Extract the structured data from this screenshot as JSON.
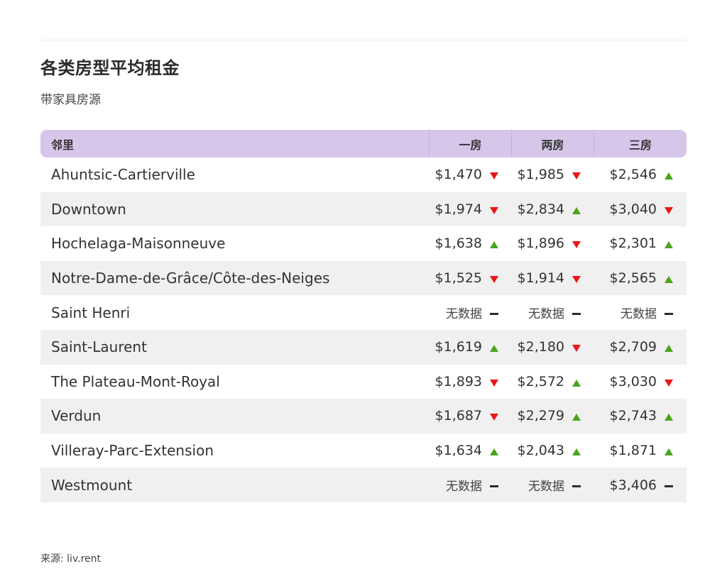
{
  "title": "各类房型平均租金",
  "subtitle": "带家具房源",
  "source": "来源: liv.rent",
  "colors": {
    "header_bg": "#d6c7ea",
    "alt_row_bg": "#f0f0f0",
    "up": "#4aa51b",
    "down": "#e8161b",
    "flat": "#2b2b2b"
  },
  "table": {
    "headers": [
      "邻里",
      "一房",
      "两房",
      "三房"
    ],
    "rows": [
      {
        "name": "Ahuntsic-Cartierville",
        "cells": [
          {
            "value": "$1,470",
            "trend": "down"
          },
          {
            "value": "$1,985",
            "trend": "down"
          },
          {
            "value": "$2,546",
            "trend": "up"
          }
        ]
      },
      {
        "name": "Downtown",
        "cells": [
          {
            "value": "$1,974",
            "trend": "down"
          },
          {
            "value": "$2,834",
            "trend": "up"
          },
          {
            "value": "$3,040",
            "trend": "down"
          }
        ]
      },
      {
        "name": "Hochelaga-Maisonneuve",
        "cells": [
          {
            "value": "$1,638",
            "trend": "up"
          },
          {
            "value": "$1,896",
            "trend": "down"
          },
          {
            "value": "$2,301",
            "trend": "up"
          }
        ]
      },
      {
        "name": "Notre-Dame-de-Grâce/Côte-des-Neiges",
        "cells": [
          {
            "value": "$1,525",
            "trend": "down"
          },
          {
            "value": "$1,914",
            "trend": "down"
          },
          {
            "value": "$2,565",
            "trend": "up"
          }
        ]
      },
      {
        "name": "Saint Henri",
        "cells": [
          {
            "value": "无数据",
            "trend": "flat"
          },
          {
            "value": "无数据",
            "trend": "flat"
          },
          {
            "value": "无数据",
            "trend": "flat"
          }
        ]
      },
      {
        "name": "Saint-Laurent",
        "cells": [
          {
            "value": "$1,619",
            "trend": "up"
          },
          {
            "value": "$2,180",
            "trend": "down"
          },
          {
            "value": "$2,709",
            "trend": "up"
          }
        ]
      },
      {
        "name": "The Plateau-Mont-Royal",
        "cells": [
          {
            "value": "$1,893",
            "trend": "down"
          },
          {
            "value": "$2,572",
            "trend": "up"
          },
          {
            "value": "$3,030",
            "trend": "down"
          }
        ]
      },
      {
        "name": "Verdun",
        "cells": [
          {
            "value": "$1,687",
            "trend": "down"
          },
          {
            "value": "$2,279",
            "trend": "up"
          },
          {
            "value": "$2,743",
            "trend": "up"
          }
        ]
      },
      {
        "name": "Villeray-Parc-Extension",
        "cells": [
          {
            "value": "$1,634",
            "trend": "up"
          },
          {
            "value": "$2,043",
            "trend": "up"
          },
          {
            "value": "$1,871",
            "trend": "up"
          }
        ]
      },
      {
        "name": "Westmount",
        "cells": [
          {
            "value": "无数据",
            "trend": "flat"
          },
          {
            "value": "无数据",
            "trend": "flat"
          },
          {
            "value": "$3,406",
            "trend": "flat"
          }
        ]
      }
    ]
  },
  "chart_data": {
    "type": "table",
    "title": "各类房型平均租金",
    "subtitle": "带家具房源",
    "columns": [
      "邻里",
      "一房",
      "两房",
      "三房"
    ],
    "rows": [
      [
        "Ahuntsic-Cartierville",
        1470,
        1985,
        2546
      ],
      [
        "Downtown",
        1974,
        2834,
        3040
      ],
      [
        "Hochelaga-Maisonneuve",
        1638,
        1896,
        2301
      ],
      [
        "Notre-Dame-de-Grâce/Côte-des-Neiges",
        1525,
        1914,
        2565
      ],
      [
        "Saint Henri",
        null,
        null,
        null
      ],
      [
        "Saint-Laurent",
        1619,
        2180,
        2709
      ],
      [
        "The Plateau-Mont-Royal",
        1893,
        2572,
        3030
      ],
      [
        "Verdun",
        1687,
        2279,
        2743
      ],
      [
        "Villeray-Parc-Extension",
        1634,
        2043,
        1871
      ],
      [
        "Westmount",
        null,
        null,
        3406
      ]
    ],
    "trends": [
      [
        "down",
        "down",
        "up"
      ],
      [
        "down",
        "up",
        "down"
      ],
      [
        "up",
        "down",
        "up"
      ],
      [
        "down",
        "down",
        "up"
      ],
      [
        "flat",
        "flat",
        "flat"
      ],
      [
        "up",
        "down",
        "up"
      ],
      [
        "down",
        "up",
        "down"
      ],
      [
        "down",
        "up",
        "up"
      ],
      [
        "up",
        "up",
        "up"
      ],
      [
        "flat",
        "flat",
        "flat"
      ]
    ],
    "source": "liv.rent"
  }
}
